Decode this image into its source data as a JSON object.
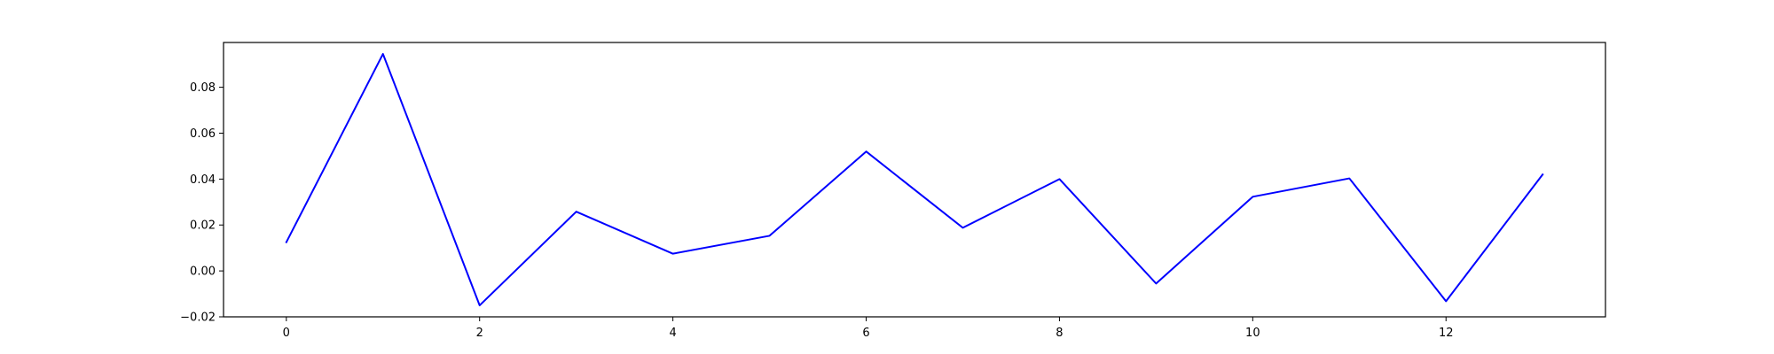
{
  "chart_data": {
    "type": "line",
    "title": "",
    "xlabel": "",
    "ylabel": "",
    "grid": false,
    "x": [
      0,
      1,
      2,
      3,
      4,
      5,
      6,
      7,
      8,
      9,
      10,
      11,
      12,
      13
    ],
    "series": [
      {
        "color": "#0000ff",
        "values": [
          0.0125,
          0.0945,
          -0.015,
          0.0258,
          0.0075,
          0.0153,
          0.052,
          0.0188,
          0.04,
          -0.0055,
          0.0323,
          0.0403,
          -0.0132,
          0.042
        ]
      }
    ],
    "xlim": [
      -0.65,
      13.65
    ],
    "ylim": [
      -0.02,
      0.0995
    ],
    "xticks": [
      0,
      2,
      4,
      6,
      8,
      10,
      12
    ],
    "xtick_labels": [
      "0",
      "2",
      "4",
      "6",
      "8",
      "10",
      "12"
    ],
    "yticks": [
      -0.02,
      0.0,
      0.02,
      0.04,
      0.06,
      0.08
    ],
    "ytick_labels": [
      "−0.02",
      "0.00",
      "0.02",
      "0.04",
      "0.06",
      "0.08"
    ]
  }
}
